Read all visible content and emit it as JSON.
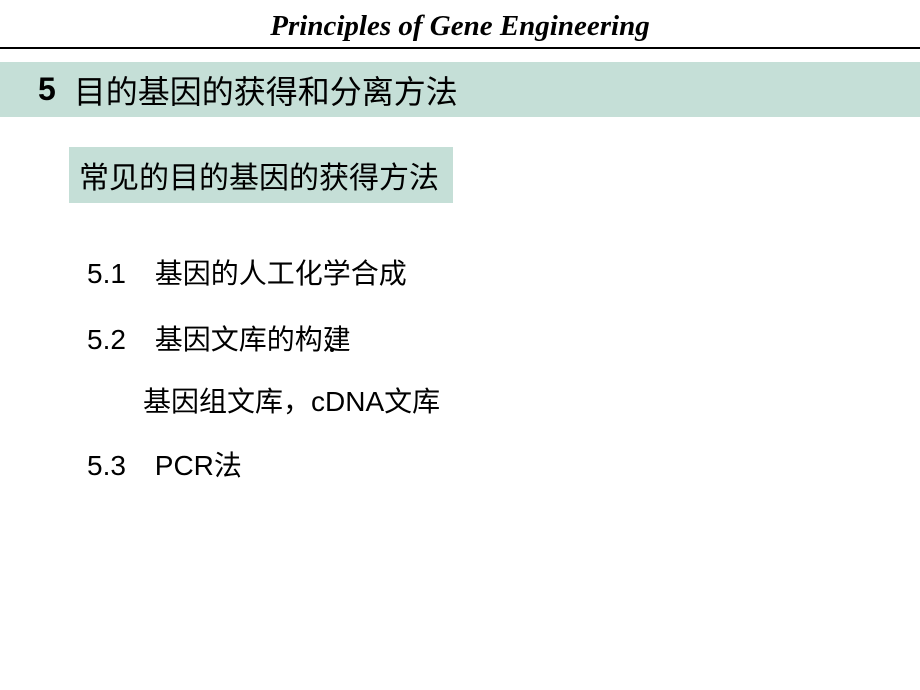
{
  "header": {
    "title": "Principles of Gene Engineering"
  },
  "chapter": {
    "number": "5",
    "title": "目的基因的获得和分离方法"
  },
  "subtitle": "常见的目的基因的获得方法",
  "items": [
    {
      "num": "5.1",
      "text": "基因的人工化学合成"
    },
    {
      "num": "5.2",
      "text": "基因文库的构建",
      "sub": "基因组文库，cDNA文库"
    },
    {
      "num": "5.3",
      "text": "PCR法"
    }
  ],
  "style": {
    "background": "#ffffff",
    "bar_color": "#c5dfd7",
    "text_color": "#000000",
    "header_fontsize": 29,
    "chapter_fontsize": 32,
    "subtitle_fontsize": 30,
    "item_fontsize": 28
  }
}
